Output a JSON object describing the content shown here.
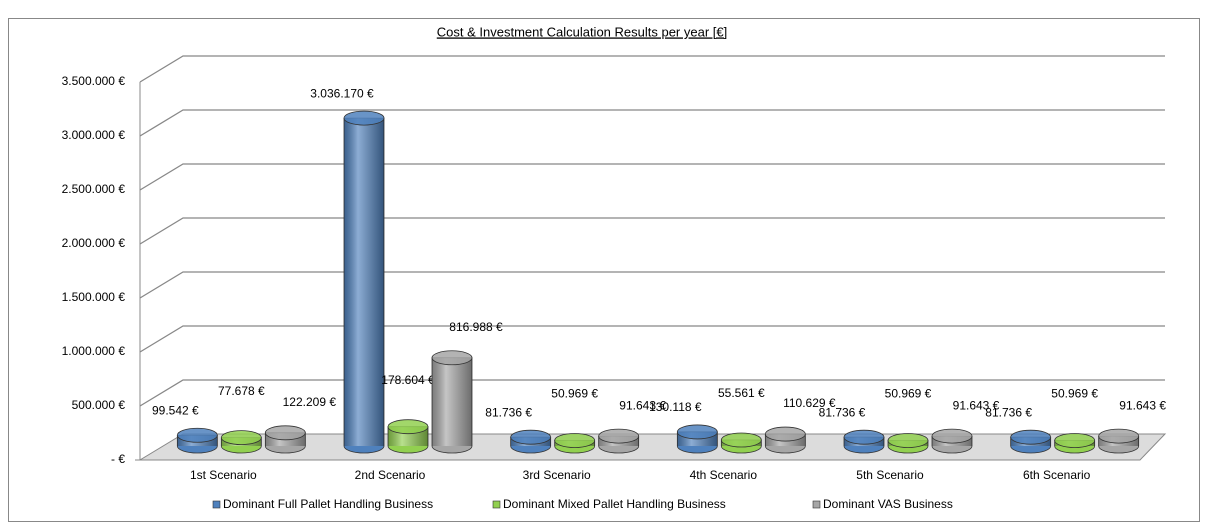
{
  "chart_data": {
    "type": "bar3d",
    "title": "Cost & Investment Calculation Results per year [€]",
    "categories": [
      "1st Scenario",
      "2nd Scenario",
      "3rd Scenario",
      "4th Scenario",
      "5th Scenario",
      "6th Scenario"
    ],
    "series": [
      {
        "name": "Dominant Full Pallet Handling Business",
        "color": "#4f81bd",
        "values": [
          99542,
          3036170,
          81736,
          130118,
          81736,
          81736
        ],
        "value_labels": [
          "99.542 €",
          "3.036.170 €",
          "81.736 €",
          "130.118 €",
          "81.736 €",
          "81.736 €"
        ]
      },
      {
        "name": "Dominant Mixed Pallet Handling Business",
        "color": "#92d050",
        "values": [
          77678,
          178604,
          50969,
          55561,
          50969,
          50969
        ],
        "value_labels": [
          "77.678 €",
          "178.604 €",
          "50.969 €",
          "55.561 €",
          "50.969 €",
          "50.969 €"
        ]
      },
      {
        "name": "Dominant VAS Business",
        "color": "#a6a6a6",
        "values": [
          122209,
          816988,
          91643,
          110629,
          91643,
          91643
        ],
        "value_labels": [
          "122.209 €",
          "816.988 €",
          "91.643 €",
          "110.629 €",
          "91.643 €",
          "91.643 €"
        ]
      }
    ],
    "ylim": [
      0,
      3500000
    ],
    "yticks": [
      {
        "value": 0,
        "label": "-   €"
      },
      {
        "value": 500000,
        "label": "500.000 €"
      },
      {
        "value": 1000000,
        "label": "1.000.000 €"
      },
      {
        "value": 1500000,
        "label": "1.500.000 €"
      },
      {
        "value": 2000000,
        "label": "2.000.000 €"
      },
      {
        "value": 2500000,
        "label": "2.500.000 €"
      },
      {
        "value": 3000000,
        "label": "3.000.000 €"
      },
      {
        "value": 3500000,
        "label": "3.500.000 €"
      }
    ],
    "grid": true,
    "legend": "bottom"
  }
}
